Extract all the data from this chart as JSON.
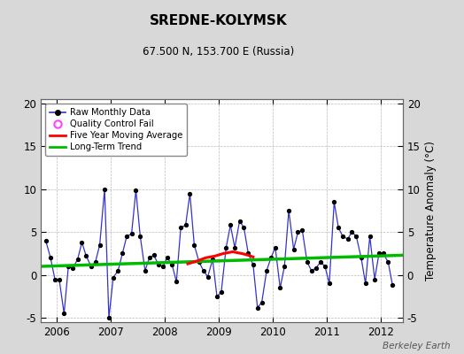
{
  "title": "SREDNE-KOLYMSK",
  "subtitle": "67.500 N, 153.700 E (Russia)",
  "ylabel": "Temperature Anomaly (°C)",
  "watermark": "Berkeley Earth",
  "xlim": [
    2005.7,
    2012.4
  ],
  "ylim": [
    -5.5,
    20.5
  ],
  "yticks": [
    -5,
    0,
    5,
    10,
    15,
    20
  ],
  "bg_color": "#d8d8d8",
  "plot_bg_color": "#ffffff",
  "raw_color": "#3333cc",
  "raw_marker_color": "#000000",
  "qc_color": "#ff44ff",
  "moving_avg_color": "#ff0000",
  "trend_color": "#00bb00",
  "raw_data_x": [
    2005.79,
    2005.88,
    2005.96,
    2006.04,
    2006.13,
    2006.21,
    2006.29,
    2006.38,
    2006.46,
    2006.54,
    2006.63,
    2006.71,
    2006.79,
    2006.88,
    2006.96,
    2007.04,
    2007.13,
    2007.21,
    2007.29,
    2007.38,
    2007.46,
    2007.54,
    2007.63,
    2007.71,
    2007.79,
    2007.88,
    2007.96,
    2008.04,
    2008.13,
    2008.21,
    2008.29,
    2008.38,
    2008.46,
    2008.54,
    2008.63,
    2008.71,
    2008.79,
    2008.88,
    2008.96,
    2009.04,
    2009.13,
    2009.21,
    2009.29,
    2009.38,
    2009.46,
    2009.54,
    2009.63,
    2009.71,
    2009.79,
    2009.88,
    2009.96,
    2010.04,
    2010.13,
    2010.21,
    2010.29,
    2010.38,
    2010.46,
    2010.54,
    2010.63,
    2010.71,
    2010.79,
    2010.88,
    2010.96,
    2011.04,
    2011.13,
    2011.21,
    2011.29,
    2011.38,
    2011.46,
    2011.54,
    2011.63,
    2011.71,
    2011.79,
    2011.88,
    2011.96,
    2012.04,
    2012.13,
    2012.21
  ],
  "raw_data_y": [
    4.0,
    2.0,
    -0.5,
    -0.5,
    -4.5,
    1.0,
    0.8,
    1.8,
    3.8,
    2.2,
    1.0,
    1.5,
    3.5,
    10.0,
    -5.0,
    -0.3,
    0.5,
    2.5,
    4.5,
    4.8,
    9.9,
    4.5,
    0.5,
    2.0,
    2.3,
    1.2,
    1.0,
    2.0,
    1.2,
    -0.8,
    5.5,
    5.8,
    9.5,
    3.5,
    1.5,
    0.5,
    -0.2,
    1.8,
    -2.5,
    -2.0,
    3.2,
    5.8,
    3.2,
    6.3,
    5.5,
    2.5,
    1.2,
    -3.8,
    -3.2,
    0.5,
    2.0,
    3.2,
    -1.5,
    1.0,
    7.5,
    3.0,
    5.0,
    5.2,
    1.5,
    0.5,
    0.8,
    1.5,
    1.0,
    -1.0,
    8.5,
    5.5,
    4.5,
    4.2,
    5.0,
    4.5,
    2.0,
    -1.0,
    4.5,
    -0.5,
    2.5,
    2.5,
    1.5,
    -1.2
  ],
  "moving_avg_x": [
    2008.42,
    2008.58,
    2008.75,
    2008.92,
    2009.08,
    2009.25,
    2009.42,
    2009.54,
    2009.63
  ],
  "moving_avg_y": [
    1.3,
    1.6,
    2.0,
    2.2,
    2.5,
    2.7,
    2.5,
    2.3,
    2.1
  ],
  "trend_x": [
    2005.7,
    2012.4
  ],
  "trend_y": [
    1.0,
    2.3
  ]
}
